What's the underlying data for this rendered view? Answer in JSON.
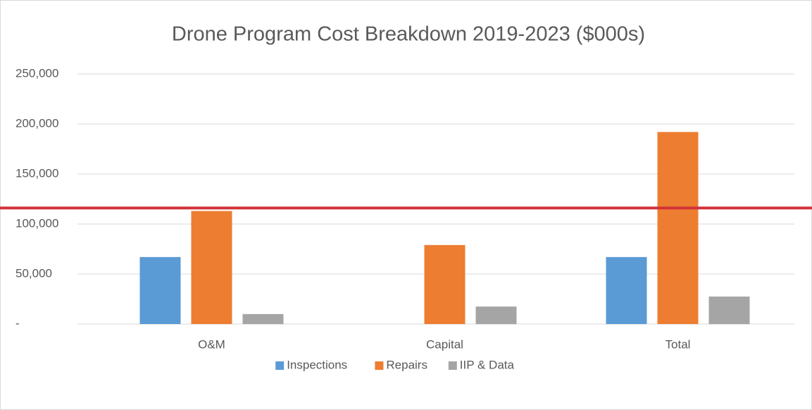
{
  "chart_data": {
    "type": "bar",
    "title": "Drone Program Cost Breakdown 2019-2023 ($000s)",
    "categories": [
      "O&M",
      "Capital",
      "Total"
    ],
    "series": [
      {
        "name": "Inspections",
        "color": "#5b9bd5",
        "values": [
          67000,
          0,
          67000
        ]
      },
      {
        "name": "Repairs",
        "color": "#ed7d31",
        "values": [
          113000,
          79000,
          192000
        ]
      },
      {
        "name": "IIP & Data",
        "color": "#a5a5a5",
        "values": [
          10000,
          17500,
          27500
        ]
      }
    ],
    "ylim": [
      0,
      250000
    ],
    "yticks": [
      {
        "value": 0,
        "label": "-"
      },
      {
        "value": 50000,
        "label": "50,000"
      },
      {
        "value": 100000,
        "label": "100,000"
      },
      {
        "value": 150000,
        "label": "150,000"
      },
      {
        "value": 200000,
        "label": "200,000"
      },
      {
        "value": 250000,
        "label": "250,000"
      }
    ],
    "grid": true,
    "legend": "bottom",
    "hline": {
      "value": 116000,
      "color": "#d13438"
    }
  }
}
